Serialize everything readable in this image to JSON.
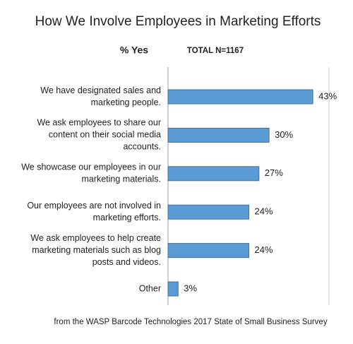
{
  "chart_data": {
    "type": "bar",
    "orientation": "horizontal",
    "title": "How We Involve Employees in Marketing Efforts",
    "subtitle": "% Yes",
    "note": "TOTAL N=1167",
    "source": "from the WASP Barcode Technologies 2017 State of Small Business Survey",
    "categories": [
      [
        "We have designated sales and",
        "marketing people."
      ],
      [
        "We ask employees to share our",
        "content on their social media",
        "accounts."
      ],
      [
        "We showcase our employees in our",
        "marketing materials."
      ],
      [
        "Our employees are not involved in",
        "marketing efforts."
      ],
      [
        "We ask employees to help create",
        "marketing materials such as blog",
        "posts and videos."
      ],
      [
        "Other"
      ]
    ],
    "values": [
      43,
      30,
      27,
      24,
      24,
      3
    ],
    "value_labels": [
      "43%",
      "30%",
      "27%",
      "24%",
      "24%",
      "3%"
    ],
    "color": "#5b9bd5"
  }
}
